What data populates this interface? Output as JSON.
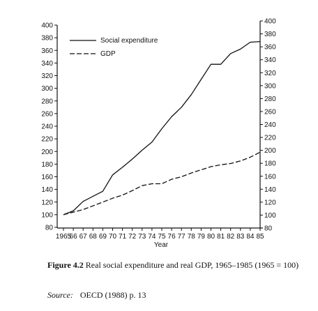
{
  "chart_data": {
    "type": "line",
    "xlabel": "Year",
    "x": [
      "1965",
      "66",
      "67",
      "68",
      "69",
      "70",
      "71",
      "72",
      "73",
      "74",
      "75",
      "76",
      "77",
      "78",
      "79",
      "80",
      "81",
      "82",
      "83",
      "84",
      "85"
    ],
    "series": [
      {
        "name": "Social expenditure",
        "style": "solid",
        "values": [
          100,
          106,
          121,
          129,
          137,
          163,
          175,
          188,
          202,
          215,
          236,
          255,
          270,
          290,
          314,
          338,
          338,
          355,
          362,
          373,
          374
        ]
      },
      {
        "name": "GDP",
        "style": "dashed",
        "values": [
          100,
          104,
          108,
          114,
          120,
          126,
          131,
          138,
          146,
          149,
          149,
          156,
          160,
          166,
          171,
          176,
          179,
          181,
          185,
          191,
          199
        ]
      }
    ],
    "y_left": {
      "ticks": [
        80,
        100,
        120,
        140,
        160,
        180,
        200,
        220,
        240,
        260,
        280,
        300,
        320,
        340,
        360,
        380,
        400
      ],
      "ylim": [
        80,
        400
      ]
    },
    "y_right": {
      "ticks": [
        80,
        100,
        120,
        140,
        160,
        180,
        200,
        220,
        240,
        260,
        280,
        300,
        320,
        340,
        360,
        380,
        400
      ],
      "ylim": [
        80,
        400
      ]
    },
    "legend_position": "top-left",
    "grid": false
  },
  "caption": {
    "figure_label": "Figure 4.2",
    "text": "Real social expenditure and real GDP, 1965–1985 (1965 = 100)"
  },
  "source": {
    "label": "Source:",
    "text": "OECD (1988) p. 13"
  }
}
